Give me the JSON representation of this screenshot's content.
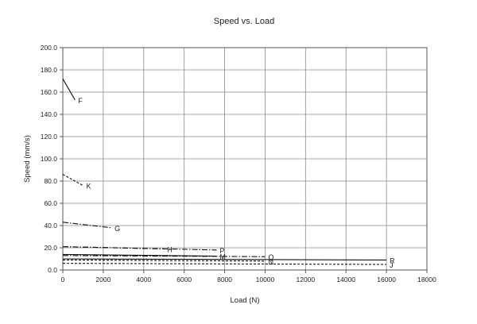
{
  "chart_data": {
    "type": "line",
    "title": "Speed vs. Load",
    "xlabel": "Load (N)",
    "ylabel": "Speed (mm/s)",
    "xlim": [
      0,
      18000
    ],
    "ylim": [
      0,
      200
    ],
    "xticks": [
      0,
      2000,
      4000,
      6000,
      8000,
      10000,
      12000,
      14000,
      16000,
      18000
    ],
    "yticks": [
      0,
      20,
      40,
      60,
      80,
      100,
      120,
      140,
      160,
      180,
      200
    ],
    "xtick_labels": [
      "0",
      "2000",
      "4000",
      "6000",
      "8000",
      "10000",
      "12000",
      "14000",
      "16000",
      "18000"
    ],
    "ytick_labels": [
      "0.0",
      "20.0",
      "40.0",
      "60.0",
      "80.0",
      "100.0",
      "120.0",
      "140.0",
      "160.0",
      "180.0",
      "200.0"
    ],
    "grid": true,
    "series": [
      {
        "name": "F",
        "dash": "solid",
        "x": [
          0,
          600
        ],
        "y": [
          172,
          153
        ]
      },
      {
        "name": "K",
        "dash": "dashed",
        "x": [
          0,
          1000
        ],
        "y": [
          86,
          76
        ]
      },
      {
        "name": "G",
        "dash": "dashdot",
        "x": [
          0,
          2400
        ],
        "y": [
          43,
          38
        ]
      },
      {
        "name": "H",
        "dash": "dashdot",
        "x": [
          0,
          5000
        ],
        "y": [
          21,
          19
        ]
      },
      {
        "name": "P",
        "dash": "dashdot",
        "x": [
          0,
          7600
        ],
        "y": [
          21,
          18
        ]
      },
      {
        "name": "M",
        "dash": "solid",
        "x": [
          0,
          7600
        ],
        "y": [
          14,
          12.5
        ]
      },
      {
        "name": "Q",
        "dash": "dashdot",
        "x": [
          0,
          10000
        ],
        "y": [
          13,
          12
        ]
      },
      {
        "name": "N",
        "dash": "dashed",
        "x": [
          0,
          10000
        ],
        "y": [
          9,
          8
        ]
      },
      {
        "name": "R",
        "dash": "solid",
        "x": [
          0,
          16000
        ],
        "y": [
          10,
          9
        ]
      },
      {
        "name": "J",
        "dash": "dashed",
        "x": [
          0,
          16000
        ],
        "y": [
          6,
          5
        ]
      }
    ]
  }
}
